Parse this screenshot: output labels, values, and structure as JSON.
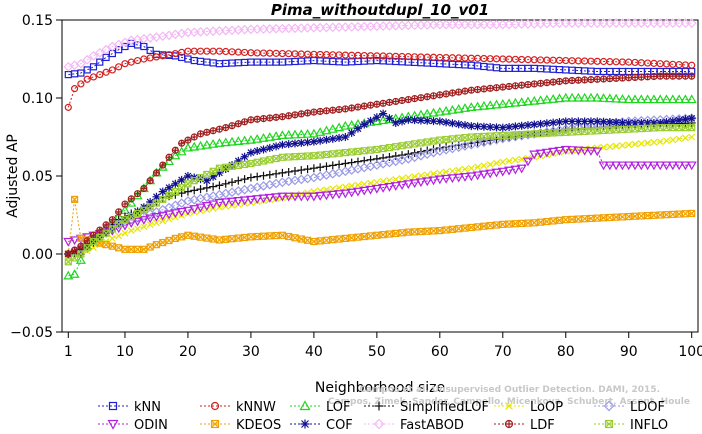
{
  "chart_data": {
    "type": "line",
    "title": "Pima_withoutdupl_10_v01",
    "xlabel": "Neighborhood size",
    "ylabel": "Adjusted AP",
    "xlim": [
      0,
      101
    ],
    "ylim": [
      -0.05,
      0.15
    ],
    "xticks": [
      1,
      10,
      20,
      30,
      40,
      50,
      60,
      70,
      80,
      90,
      100
    ],
    "yticks": [
      -0.05,
      0.0,
      0.05,
      0.1,
      0.15
    ],
    "ytick_labels": [
      "−0.05",
      "0.00",
      "0.05",
      "0.10",
      "0.15"
    ],
    "grid": false,
    "legend_position": "bottom",
    "credit": [
      "Campos et al. Unsupervised Outlier Detection. DAMI, 2015.",
      "Campos, Zimek, Sander, Campello, Micenkova, Schubert, Assent, Houle"
    ],
    "series": [
      {
        "name": "kNN",
        "color": "#1f1fd6",
        "marker": "square",
        "points": [
          [
            1,
            0.115
          ],
          [
            3,
            0.116
          ],
          [
            5,
            0.12
          ],
          [
            7,
            0.126
          ],
          [
            9,
            0.131
          ],
          [
            11,
            0.135
          ],
          [
            13,
            0.133
          ],
          [
            15,
            0.128
          ],
          [
            18,
            0.127
          ],
          [
            21,
            0.124
          ],
          [
            25,
            0.122
          ],
          [
            30,
            0.123
          ],
          [
            35,
            0.123
          ],
          [
            40,
            0.124
          ],
          [
            45,
            0.123
          ],
          [
            50,
            0.124
          ],
          [
            55,
            0.123
          ],
          [
            60,
            0.122
          ],
          [
            65,
            0.121
          ],
          [
            70,
            0.119
          ],
          [
            75,
            0.119
          ],
          [
            80,
            0.118
          ],
          [
            85,
            0.117
          ],
          [
            90,
            0.117
          ],
          [
            95,
            0.117
          ],
          [
            100,
            0.117
          ]
        ]
      },
      {
        "name": "kNNW",
        "color": "#d41f1f",
        "marker": "circle",
        "points": [
          [
            1,
            0.094
          ],
          [
            2,
            0.106
          ],
          [
            4,
            0.112
          ],
          [
            6,
            0.115
          ],
          [
            8,
            0.118
          ],
          [
            10,
            0.122
          ],
          [
            13,
            0.125
          ],
          [
            16,
            0.127
          ],
          [
            20,
            0.13
          ],
          [
            25,
            0.13
          ],
          [
            30,
            0.129
          ],
          [
            40,
            0.128
          ],
          [
            50,
            0.127
          ],
          [
            60,
            0.126
          ],
          [
            70,
            0.125
          ],
          [
            80,
            0.124
          ],
          [
            90,
            0.123
          ],
          [
            100,
            0.121
          ]
        ]
      },
      {
        "name": "LOF",
        "color": "#1fd61f",
        "marker": "triangle-up",
        "points": [
          [
            1,
            -0.014
          ],
          [
            2,
            -0.013
          ],
          [
            4,
            0.005
          ],
          [
            6,
            0.014
          ],
          [
            8,
            0.02
          ],
          [
            10,
            0.028
          ],
          [
            13,
            0.042
          ],
          [
            15,
            0.052
          ],
          [
            18,
            0.063
          ],
          [
            20,
            0.068
          ],
          [
            25,
            0.071
          ],
          [
            30,
            0.073
          ],
          [
            35,
            0.076
          ],
          [
            40,
            0.077
          ],
          [
            45,
            0.082
          ],
          [
            50,
            0.085
          ],
          [
            55,
            0.088
          ],
          [
            60,
            0.091
          ],
          [
            65,
            0.094
          ],
          [
            70,
            0.096
          ],
          [
            75,
            0.098
          ],
          [
            80,
            0.1
          ],
          [
            85,
            0.1
          ],
          [
            90,
            0.099
          ],
          [
            95,
            0.099
          ],
          [
            100,
            0.099
          ]
        ]
      },
      {
        "name": "SimplifiedLOF",
        "color": "#111111",
        "marker": "plus",
        "points": [
          [
            1,
            0.0
          ],
          [
            3,
            0.0
          ],
          [
            5,
            0.007
          ],
          [
            7,
            0.016
          ],
          [
            9,
            0.022
          ],
          [
            11,
            0.026
          ],
          [
            13,
            0.028
          ],
          [
            16,
            0.036
          ],
          [
            20,
            0.04
          ],
          [
            25,
            0.044
          ],
          [
            30,
            0.049
          ],
          [
            35,
            0.052
          ],
          [
            40,
            0.055
          ],
          [
            45,
            0.058
          ],
          [
            50,
            0.061
          ],
          [
            55,
            0.064
          ],
          [
            60,
            0.068
          ],
          [
            65,
            0.071
          ],
          [
            70,
            0.074
          ],
          [
            75,
            0.077
          ],
          [
            80,
            0.08
          ],
          [
            85,
            0.081
          ],
          [
            90,
            0.082
          ],
          [
            95,
            0.083
          ],
          [
            100,
            0.084
          ]
        ]
      },
      {
        "name": "LoOP",
        "color": "#e6e600",
        "marker": "x",
        "points": [
          [
            1,
            -0.005
          ],
          [
            3,
            0.0
          ],
          [
            5,
            0.004
          ],
          [
            8,
            0.01
          ],
          [
            11,
            0.015
          ],
          [
            15,
            0.02
          ],
          [
            20,
            0.026
          ],
          [
            25,
            0.03
          ],
          [
            30,
            0.033
          ],
          [
            35,
            0.036
          ],
          [
            40,
            0.04
          ],
          [
            45,
            0.043
          ],
          [
            50,
            0.046
          ],
          [
            55,
            0.049
          ],
          [
            60,
            0.052
          ],
          [
            65,
            0.055
          ],
          [
            70,
            0.059
          ],
          [
            75,
            0.062
          ],
          [
            80,
            0.066
          ],
          [
            85,
            0.068
          ],
          [
            90,
            0.07
          ],
          [
            95,
            0.072
          ],
          [
            100,
            0.075
          ]
        ]
      },
      {
        "name": "LDOF",
        "color": "#9a9ae8",
        "marker": "diamond",
        "points": [
          [
            1,
            0.0
          ],
          [
            3,
            0.004
          ],
          [
            5,
            0.01
          ],
          [
            8,
            0.018
          ],
          [
            11,
            0.022
          ],
          [
            15,
            0.027
          ],
          [
            20,
            0.034
          ],
          [
            25,
            0.038
          ],
          [
            30,
            0.042
          ],
          [
            35,
            0.046
          ],
          [
            40,
            0.049
          ],
          [
            45,
            0.053
          ],
          [
            50,
            0.057
          ],
          [
            55,
            0.061
          ],
          [
            60,
            0.066
          ],
          [
            65,
            0.07
          ],
          [
            70,
            0.074
          ],
          [
            75,
            0.077
          ],
          [
            80,
            0.08
          ],
          [
            85,
            0.083
          ],
          [
            90,
            0.085
          ],
          [
            95,
            0.086
          ],
          [
            100,
            0.087
          ]
        ]
      },
      {
        "name": "ODIN",
        "color": "#b21fe0",
        "marker": "triangle-down",
        "points": [
          [
            1,
            0.008
          ],
          [
            3,
            0.01
          ],
          [
            5,
            0.012
          ],
          [
            8,
            0.015
          ],
          [
            11,
            0.02
          ],
          [
            15,
            0.024
          ],
          [
            20,
            0.028
          ],
          [
            25,
            0.033
          ],
          [
            30,
            0.035
          ],
          [
            35,
            0.037
          ],
          [
            40,
            0.037
          ],
          [
            45,
            0.039
          ],
          [
            50,
            0.042
          ],
          [
            55,
            0.045
          ],
          [
            60,
            0.048
          ],
          [
            65,
            0.05
          ],
          [
            70,
            0.053
          ],
          [
            73,
            0.055
          ],
          [
            75,
            0.064
          ],
          [
            80,
            0.067
          ],
          [
            85,
            0.066
          ],
          [
            86,
            0.057
          ],
          [
            90,
            0.057
          ],
          [
            95,
            0.057
          ],
          [
            100,
            0.057
          ]
        ]
      },
      {
        "name": "KDEOS",
        "color": "#f0a000",
        "marker": "square-x",
        "points": [
          [
            1,
            0.0
          ],
          [
            2,
            0.035
          ],
          [
            3,
            0.01
          ],
          [
            5,
            0.008
          ],
          [
            8,
            0.005
          ],
          [
            10,
            0.003
          ],
          [
            13,
            0.003
          ],
          [
            15,
            0.006
          ],
          [
            18,
            0.01
          ],
          [
            20,
            0.012
          ],
          [
            25,
            0.009
          ],
          [
            30,
            0.011
          ],
          [
            35,
            0.012
          ],
          [
            40,
            0.008
          ],
          [
            45,
            0.01
          ],
          [
            50,
            0.012
          ],
          [
            55,
            0.014
          ],
          [
            60,
            0.015
          ],
          [
            65,
            0.017
          ],
          [
            70,
            0.019
          ],
          [
            75,
            0.02
          ],
          [
            80,
            0.022
          ],
          [
            85,
            0.023
          ],
          [
            90,
            0.024
          ],
          [
            95,
            0.025
          ],
          [
            100,
            0.026
          ]
        ]
      },
      {
        "name": "COF",
        "color": "#101090",
        "marker": "asterisk",
        "points": [
          [
            1,
            0.0
          ],
          [
            3,
            0.003
          ],
          [
            5,
            0.008
          ],
          [
            8,
            0.016
          ],
          [
            10,
            0.022
          ],
          [
            13,
            0.03
          ],
          [
            16,
            0.04
          ],
          [
            20,
            0.05
          ],
          [
            23,
            0.047
          ],
          [
            27,
            0.057
          ],
          [
            30,
            0.065
          ],
          [
            35,
            0.07
          ],
          [
            40,
            0.072
          ],
          [
            45,
            0.075
          ],
          [
            48,
            0.083
          ],
          [
            51,
            0.09
          ],
          [
            53,
            0.084
          ],
          [
            55,
            0.086
          ],
          [
            60,
            0.085
          ],
          [
            65,
            0.082
          ],
          [
            70,
            0.081
          ],
          [
            75,
            0.083
          ],
          [
            80,
            0.085
          ],
          [
            85,
            0.085
          ],
          [
            90,
            0.084
          ],
          [
            95,
            0.084
          ],
          [
            100,
            0.087
          ]
        ]
      },
      {
        "name": "FastABOD",
        "color": "#f4b8f4",
        "marker": "diamond",
        "points": [
          [
            1,
            0.12
          ],
          [
            3,
            0.122
          ],
          [
            5,
            0.127
          ],
          [
            8,
            0.133
          ],
          [
            11,
            0.137
          ],
          [
            15,
            0.139
          ],
          [
            20,
            0.142
          ],
          [
            30,
            0.144
          ],
          [
            40,
            0.145
          ],
          [
            50,
            0.146
          ],
          [
            60,
            0.147
          ],
          [
            70,
            0.147
          ],
          [
            80,
            0.148
          ],
          [
            90,
            0.148
          ],
          [
            100,
            0.148
          ]
        ]
      },
      {
        "name": "LDF",
        "color": "#a01e1e",
        "marker": "circle-plus",
        "points": [
          [
            1,
            0.0
          ],
          [
            3,
            0.005
          ],
          [
            5,
            0.012
          ],
          [
            8,
            0.022
          ],
          [
            10,
            0.032
          ],
          [
            13,
            0.042
          ],
          [
            15,
            0.052
          ],
          [
            17,
            0.062
          ],
          [
            19,
            0.071
          ],
          [
            22,
            0.077
          ],
          [
            26,
            0.081
          ],
          [
            30,
            0.086
          ],
          [
            35,
            0.088
          ],
          [
            40,
            0.091
          ],
          [
            45,
            0.093
          ],
          [
            50,
            0.096
          ],
          [
            55,
            0.099
          ],
          [
            60,
            0.102
          ],
          [
            65,
            0.105
          ],
          [
            70,
            0.107
          ],
          [
            75,
            0.109
          ],
          [
            80,
            0.111
          ],
          [
            85,
            0.112
          ],
          [
            90,
            0.113
          ],
          [
            95,
            0.114
          ],
          [
            100,
            0.114
          ]
        ]
      },
      {
        "name": "INFLO",
        "color": "#9acd32",
        "marker": "square-x",
        "points": [
          [
            1,
            -0.005
          ],
          [
            3,
            0.0
          ],
          [
            5,
            0.008
          ],
          [
            8,
            0.016
          ],
          [
            10,
            0.022
          ],
          [
            13,
            0.028
          ],
          [
            16,
            0.035
          ],
          [
            20,
            0.045
          ],
          [
            25,
            0.055
          ],
          [
            30,
            0.058
          ],
          [
            35,
            0.062
          ],
          [
            40,
            0.063
          ],
          [
            45,
            0.065
          ],
          [
            50,
            0.067
          ],
          [
            55,
            0.07
          ],
          [
            60,
            0.073
          ],
          [
            65,
            0.075
          ],
          [
            70,
            0.076
          ],
          [
            75,
            0.077
          ],
          [
            80,
            0.078
          ],
          [
            85,
            0.079
          ],
          [
            90,
            0.08
          ],
          [
            95,
            0.081
          ],
          [
            100,
            0.081
          ]
        ]
      }
    ]
  }
}
